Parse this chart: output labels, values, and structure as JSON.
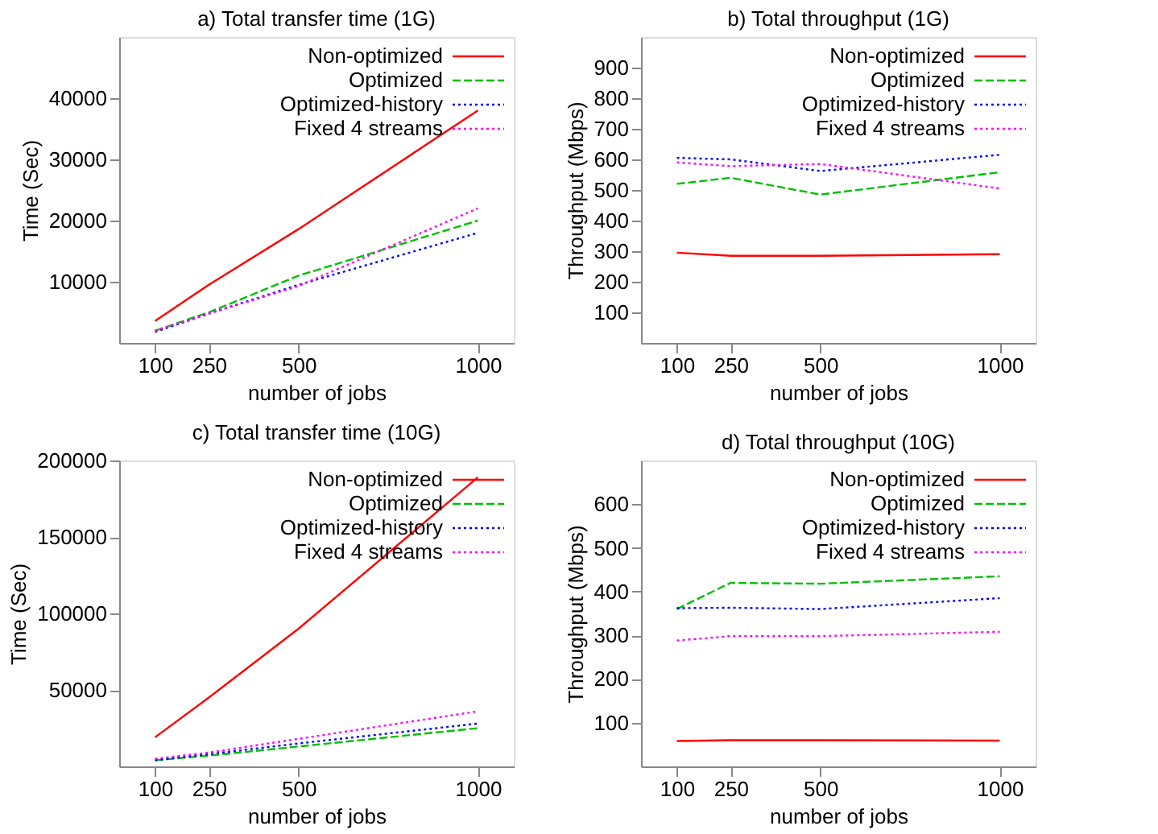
{
  "chart_data": [
    {
      "type": "line",
      "title": "a) Total transfer time (1G)",
      "xlabel": "number of jobs",
      "ylabel": "Time (Sec)",
      "x": [
        100,
        250,
        500,
        1000
      ],
      "xlim": [
        0,
        1100
      ],
      "xticks": [
        100,
        250,
        500,
        1000
      ],
      "ylim": [
        0,
        50000
      ],
      "yticks": [
        10000,
        20000,
        30000,
        40000
      ],
      "grid": false,
      "legend": "top right",
      "series": [
        {
          "name": "Non-optimized",
          "color": "#ff0000",
          "line_style": "solid",
          "values": [
            3600,
            9500,
            18600,
            38000
          ]
        },
        {
          "name": "Optimized",
          "color": "#00c000",
          "line_style": "dashed",
          "values": [
            2000,
            5000,
            11000,
            20000
          ]
        },
        {
          "name": "Optimized-history",
          "color": "#0000ff",
          "line_style": "dotted",
          "values": [
            1800,
            4800,
            9500,
            18000
          ]
        },
        {
          "name": "Fixed 4 streams",
          "color": "#ff00ff",
          "line_style": "dotted",
          "values": [
            2000,
            4800,
            9300,
            22000
          ]
        }
      ]
    },
    {
      "type": "line",
      "title": "b) Total throughput (1G)",
      "xlabel": "number of jobs",
      "ylabel": "Throughput (Mbps)",
      "x": [
        100,
        250,
        500,
        1000
      ],
      "xlim": [
        0,
        1100
      ],
      "xticks": [
        100,
        250,
        500,
        1000
      ],
      "ylim": [
        0,
        1000
      ],
      "yticks": [
        100,
        200,
        300,
        400,
        500,
        600,
        700,
        800,
        900
      ],
      "grid": false,
      "legend": "top right",
      "series": [
        {
          "name": "Non-optimized",
          "color": "#ff0000",
          "line_style": "solid",
          "values": [
            295,
            285,
            285,
            290
          ]
        },
        {
          "name": "Optimized",
          "color": "#00c000",
          "line_style": "dashed",
          "values": [
            520,
            540,
            485,
            558
          ]
        },
        {
          "name": "Optimized-history",
          "color": "#0000ff",
          "line_style": "dotted",
          "values": [
            605,
            600,
            562,
            615
          ]
        },
        {
          "name": "Fixed 4 streams",
          "color": "#ff00ff",
          "line_style": "dotted",
          "values": [
            590,
            578,
            585,
            505
          ]
        }
      ]
    },
    {
      "type": "line",
      "title": "c) Total transfer time (10G)",
      "xlabel": "number of jobs",
      "ylabel": "Time (Sec)",
      "x": [
        100,
        250,
        500,
        1000
      ],
      "xlim": [
        0,
        1100
      ],
      "xticks": [
        100,
        250,
        500,
        1000
      ],
      "ylim": [
        0,
        200000
      ],
      "yticks": [
        50000,
        100000,
        150000,
        200000
      ],
      "grid": false,
      "legend": "top right",
      "series": [
        {
          "name": "Non-optimized",
          "color": "#ff0000",
          "line_style": "solid",
          "values": [
            19000,
            45000,
            90000,
            189000
          ]
        },
        {
          "name": "Optimized",
          "color": "#00c000",
          "line_style": "dashed",
          "values": [
            4000,
            7000,
            13000,
            25000
          ]
        },
        {
          "name": "Optimized-history",
          "color": "#0000ff",
          "line_style": "dotted",
          "values": [
            4000,
            8000,
            15000,
            28000
          ]
        },
        {
          "name": "Fixed 4 streams",
          "color": "#ff00ff",
          "line_style": "dotted",
          "values": [
            5000,
            9000,
            18000,
            36000
          ]
        }
      ]
    },
    {
      "type": "line",
      "title": "d) Total throughput (10G)",
      "xlabel": "number of jobs",
      "ylabel": "Throughput (Mbps)",
      "x": [
        100,
        250,
        500,
        1000
      ],
      "xlim": [
        0,
        1100
      ],
      "xticks": [
        100,
        250,
        500,
        1000
      ],
      "ylim": [
        0,
        700
      ],
      "yticks": [
        100,
        200,
        300,
        400,
        500,
        600
      ],
      "grid": false,
      "legend": "top right",
      "series": [
        {
          "name": "Non-optimized",
          "color": "#ff0000",
          "line_style": "solid",
          "values": [
            58,
            60,
            60,
            59
          ]
        },
        {
          "name": "Optimized",
          "color": "#00c000",
          "line_style": "dashed",
          "values": [
            360,
            420,
            418,
            435
          ]
        },
        {
          "name": "Optimized-history",
          "color": "#0000ff",
          "line_style": "dotted",
          "values": [
            362,
            363,
            360,
            385
          ]
        },
        {
          "name": "Fixed 4 streams",
          "color": "#ff00ff",
          "line_style": "dotted",
          "values": [
            288,
            298,
            298,
            308
          ]
        }
      ]
    }
  ]
}
